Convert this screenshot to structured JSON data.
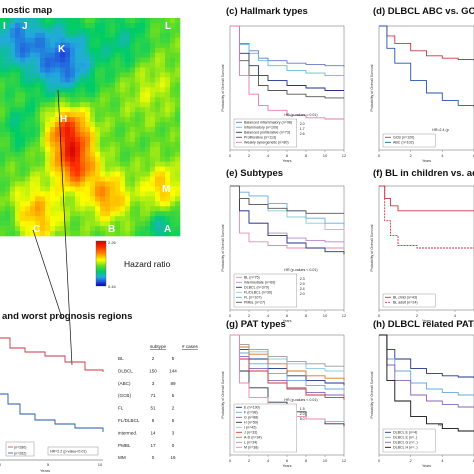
{
  "map": {
    "title": "nostic map",
    "region_labels": [
      "I",
      "J",
      "K",
      "L",
      "H",
      "M",
      "C",
      "B",
      "A"
    ],
    "colorbar": {
      "label": "Hazard ratio",
      "max": "2.26",
      "min": "0.44",
      "colors": [
        "#cc0000",
        "#ff3300",
        "#ff9900",
        "#ffff00",
        "#66dd22",
        "#00cc66",
        "#22aadd",
        "#2255dd",
        "#0000aa"
      ]
    }
  },
  "bottom_left": {
    "title": "and worst prognosis regions",
    "xlabel": "Years",
    "ticks": [
      "0",
      "5",
      "10"
    ],
    "legend": [
      "(n=280)",
      "(n=262)"
    ],
    "hr_text": "HR=2.2 (p-value<0.01)",
    "table": {
      "headers": [
        "subtype",
        "# cases"
      ],
      "rows": [
        [
          "BL",
          "2",
          "5"
        ],
        [
          "DLBCL",
          "150",
          "144"
        ],
        [
          "(ABC)",
          "3",
          "89"
        ],
        [
          "(GCB)",
          "71",
          "5"
        ],
        [
          "FL",
          "51",
          "2"
        ],
        [
          "FL/DLBCL",
          "6",
          "5"
        ],
        [
          "intermed.",
          "14",
          "3"
        ],
        [
          "PMBL",
          "17",
          "0"
        ],
        [
          "MM",
          "0",
          "16"
        ]
      ]
    }
  },
  "chart_data": [
    {
      "panel": "c",
      "type": "line",
      "title": "(c) Hallmark types",
      "ylabel": "Probability of Overall Survival",
      "xlabel": "Years",
      "xticks": [
        "0",
        "2",
        "4",
        "6",
        "8",
        "10",
        "12"
      ],
      "ylim": [
        0,
        1
      ],
      "xlim": [
        0,
        12
      ],
      "hr_text": "HR (p-values < 0.01)",
      "hr_values": [
        "2.0",
        "1.7",
        "2.6"
      ],
      "series": [
        {
          "name": "Balanced inflammatory (n=98)",
          "color": "#6677cc",
          "x": [
            0,
            1,
            2,
            3,
            4,
            6,
            8,
            10,
            12
          ],
          "y": [
            1,
            0.86,
            0.8,
            0.74,
            0.72,
            0.7,
            0.69,
            0.68,
            0.67
          ]
        },
        {
          "name": "Inflammatory (n=109)",
          "color": "#66bbcc",
          "x": [
            0,
            1,
            2,
            3,
            4,
            6,
            8,
            10,
            12
          ],
          "y": [
            1,
            0.85,
            0.78,
            0.72,
            0.68,
            0.64,
            0.62,
            0.6,
            0.6
          ]
        },
        {
          "name": "Balanced proliferative (n=73)",
          "color": "#223388",
          "x": [
            0,
            1,
            2,
            3,
            4,
            6,
            8,
            10,
            12
          ],
          "y": [
            1,
            0.78,
            0.68,
            0.6,
            0.56,
            0.52,
            0.5,
            0.48,
            0.48
          ]
        },
        {
          "name": "Proliferative (n=113)",
          "color": "#555555",
          "x": [
            0,
            1,
            2,
            3,
            4,
            6,
            8,
            10,
            12
          ],
          "y": [
            1,
            0.72,
            0.6,
            0.52,
            0.48,
            0.45,
            0.43,
            0.42,
            0.42
          ]
        },
        {
          "name": "Weakly synergenetic (n=80)",
          "color": "#ee77aa",
          "x": [
            0,
            1,
            2,
            3,
            4,
            6,
            8,
            10,
            12
          ],
          "y": [
            1,
            0.6,
            0.45,
            0.36,
            0.32,
            0.28,
            0.26,
            0.25,
            0.25
          ]
        }
      ]
    },
    {
      "panel": "d",
      "type": "line",
      "title": "(d) DLBCL ABC vs. GCB",
      "ylabel": "Probability of Overall Survival",
      "xlabel": "Years",
      "xticks": [
        "0",
        "2",
        "4",
        "6"
      ],
      "ylim": [
        0,
        1
      ],
      "xlim": [
        0,
        6
      ],
      "hr_text": "HR=2.4 (p",
      "series": [
        {
          "name": "GCB (n=120)",
          "color": "#cc3344",
          "x": [
            0,
            0.5,
            1,
            2,
            3,
            4,
            5,
            6
          ],
          "y": [
            1,
            0.92,
            0.86,
            0.8,
            0.76,
            0.74,
            0.73,
            0.72
          ]
        },
        {
          "name": "ABC (n=102)",
          "color": "#2255aa",
          "x": [
            0,
            0.5,
            1,
            2,
            3,
            4,
            5,
            6
          ],
          "y": [
            1,
            0.82,
            0.7,
            0.56,
            0.46,
            0.4,
            0.36,
            0.34
          ]
        }
      ]
    },
    {
      "panel": "e",
      "type": "line",
      "title": "(e) Subtypes",
      "ylabel": "Probability of Overall Survival",
      "xlabel": "Years",
      "xticks": [
        "0",
        "2",
        "4",
        "6",
        "8",
        "10",
        "12"
      ],
      "ylim": [
        0,
        1
      ],
      "xlim": [
        0,
        12
      ],
      "hr_text": "HR (p-values < 0.01)",
      "hr_values": [
        "2.3",
        "2.9",
        "2.4",
        "2.0"
      ],
      "series": [
        {
          "name": "BL (n=75)",
          "color": "#ee88aa",
          "x": [
            0,
            1,
            2,
            4,
            6,
            8,
            10,
            12
          ],
          "y": [
            1,
            0.62,
            0.55,
            0.52,
            0.5,
            0.5,
            0.5,
            0.5
          ]
        },
        {
          "name": "intermediate (n=69)",
          "color": "#bb88cc",
          "x": [
            0,
            1,
            2,
            4,
            6,
            8,
            10,
            12
          ],
          "y": [
            1,
            0.8,
            0.7,
            0.62,
            0.58,
            0.56,
            0.55,
            0.55
          ]
        },
        {
          "name": "DLBCL (n=370)",
          "color": "#223388",
          "x": [
            0,
            1,
            2,
            4,
            6,
            8,
            10,
            12
          ],
          "y": [
            1,
            0.8,
            0.7,
            0.6,
            0.54,
            0.5,
            0.47,
            0.45
          ]
        },
        {
          "name": "FL/DLBCL (n=30)",
          "color": "#88cccc",
          "x": [
            0,
            1,
            2,
            4,
            6,
            8,
            10,
            12
          ],
          "y": [
            1,
            0.9,
            0.85,
            0.8,
            0.75,
            0.7,
            0.65,
            0.64
          ]
        },
        {
          "name": "FL (n=107)",
          "color": "#66aadd",
          "x": [
            0,
            1,
            2,
            4,
            6,
            8,
            10,
            12
          ],
          "y": [
            1,
            0.95,
            0.92,
            0.86,
            0.8,
            0.74,
            0.7,
            0.68
          ]
        },
        {
          "name": "PMBL (n=27)",
          "color": "#555555",
          "x": [
            0,
            1,
            2,
            4,
            6,
            8,
            10,
            12
          ],
          "y": [
            1,
            0.9,
            0.85,
            0.82,
            0.8,
            0.78,
            0.78,
            0.78
          ]
        }
      ]
    },
    {
      "panel": "f",
      "type": "line",
      "title": "(f) BL in children vs. adults",
      "ylabel": "Probability of Overall Survival",
      "xlabel": "Years",
      "xticks": [
        "0",
        "2",
        "4"
      ],
      "ylim": [
        0,
        1
      ],
      "xlim": [
        0,
        5
      ],
      "series": [
        {
          "name": "BL child (n=43)",
          "color": "#cc3344",
          "x": [
            0,
            0.3,
            0.6,
            1,
            2,
            3,
            5
          ],
          "y": [
            1,
            0.9,
            0.84,
            0.8,
            0.8,
            0.8,
            0.8
          ]
        },
        {
          "name": "BL adult (n=24)",
          "color": "#cc3344",
          "dashed": true,
          "x": [
            0,
            0.3,
            0.6,
            1,
            2,
            3,
            5
          ],
          "y": [
            1,
            0.72,
            0.6,
            0.52,
            0.5,
            0.5,
            0.5
          ]
        }
      ]
    },
    {
      "panel": "g",
      "type": "line",
      "title": "(g) PAT types",
      "ylabel": "Probability of Overall Survival",
      "xlabel": "Years",
      "xticks": [
        "0",
        "2",
        "4",
        "6",
        "8",
        "10",
        "12"
      ],
      "ylim": [
        0,
        1
      ],
      "xlim": [
        0,
        12
      ],
      "hr_text": "HR (p-values < 0.01)",
      "hr_values": [
        "1.5",
        "2.0",
        "5.0"
      ],
      "series": [
        {
          "name": "E (n=100)",
          "color": "#223388",
          "x": [
            0,
            1,
            2,
            4,
            6,
            8,
            10,
            12
          ],
          "y": [
            1,
            0.88,
            0.8,
            0.72,
            0.66,
            0.62,
            0.6,
            0.58
          ]
        },
        {
          "name": "F (n=98)",
          "color": "#66aadd",
          "x": [
            0,
            1,
            2,
            4,
            6,
            8,
            10,
            12
          ],
          "y": [
            1,
            0.85,
            0.76,
            0.68,
            0.62,
            0.58,
            0.55,
            0.54
          ]
        },
        {
          "name": "G (n=88)",
          "color": "#8866bb",
          "x": [
            0,
            1,
            2,
            4,
            6,
            8,
            10,
            12
          ],
          "y": [
            1,
            0.82,
            0.72,
            0.62,
            0.56,
            0.52,
            0.5,
            0.48
          ]
        },
        {
          "name": "H (n=59)",
          "color": "#223344",
          "x": [
            0,
            1,
            2,
            4,
            6,
            8,
            10,
            12
          ],
          "y": [
            1,
            0.7,
            0.56,
            0.44,
            0.36,
            0.3,
            0.26,
            0.24
          ]
        },
        {
          "name": "I (n=42)",
          "color": "#88ccdd",
          "x": [
            0,
            1,
            2,
            4,
            6,
            8,
            10,
            12
          ],
          "y": [
            1,
            0.9,
            0.86,
            0.8,
            0.76,
            0.72,
            0.7,
            0.7
          ]
        },
        {
          "name": "J (n=33)",
          "color": "#cc3344",
          "x": [
            0,
            1,
            2,
            4,
            6,
            8,
            10,
            12
          ],
          "y": [
            1,
            0.8,
            0.7,
            0.6,
            0.55,
            0.5,
            0.48,
            0.46
          ]
        },
        {
          "name": "A-D (n=34)",
          "color": "#dd7722",
          "x": [
            0,
            1,
            2,
            4,
            6,
            8,
            10,
            12
          ],
          "y": [
            1,
            0.9,
            0.84,
            0.76,
            0.7,
            0.66,
            0.64,
            0.62
          ]
        },
        {
          "name": "L (n=34)",
          "color": "#999999",
          "x": [
            0,
            1,
            2,
            4,
            6,
            8,
            10,
            12
          ],
          "y": [
            1,
            0.92,
            0.88,
            0.82,
            0.78,
            0.76,
            0.74,
            0.74
          ]
        },
        {
          "name": "M (n=38)",
          "color": "#ee88aa",
          "x": [
            0,
            1,
            2,
            4,
            6,
            8,
            10,
            12
          ],
          "y": [
            1,
            0.6,
            0.48,
            0.38,
            0.32,
            0.3,
            0.28,
            0.28
          ]
        }
      ]
    },
    {
      "panel": "h",
      "type": "line",
      "title": "(h) DLBCL related PATs",
      "ylabel": "Probability of Overall Survival",
      "xlabel": "Years",
      "xticks": [
        "0",
        "2",
        "4",
        "6"
      ],
      "ylim": [
        0,
        1
      ],
      "xlim": [
        0,
        6
      ],
      "hr_text": "HR",
      "series": [
        {
          "name": "DLBCL E (n=4)",
          "color": "#223388",
          "x": [
            0,
            0.5,
            1,
            2,
            3,
            4,
            5,
            6
          ],
          "y": [
            1,
            0.88,
            0.8,
            0.72,
            0.68,
            0.66,
            0.65,
            0.64
          ]
        },
        {
          "name": "DLBCL E (n=..)",
          "color": "#66aadd",
          "x": [
            0,
            0.5,
            1,
            2,
            3,
            4,
            5,
            6
          ],
          "y": [
            1,
            0.8,
            0.7,
            0.6,
            0.55,
            0.52,
            0.5,
            0.5
          ]
        },
        {
          "name": "DLBCL G (n=..)",
          "color": "#8866bb",
          "x": [
            0,
            0.5,
            1,
            2,
            3,
            4,
            5,
            6
          ],
          "y": [
            1,
            0.75,
            0.62,
            0.5,
            0.45,
            0.42,
            0.4,
            0.4
          ]
        },
        {
          "name": "DLBCL H (n=..)",
          "color": "#111111",
          "x": [
            0,
            0.5,
            1,
            2,
            3,
            4,
            5,
            6
          ],
          "y": [
            1,
            0.62,
            0.45,
            0.32,
            0.26,
            0.22,
            0.2,
            0.2
          ]
        }
      ]
    }
  ]
}
